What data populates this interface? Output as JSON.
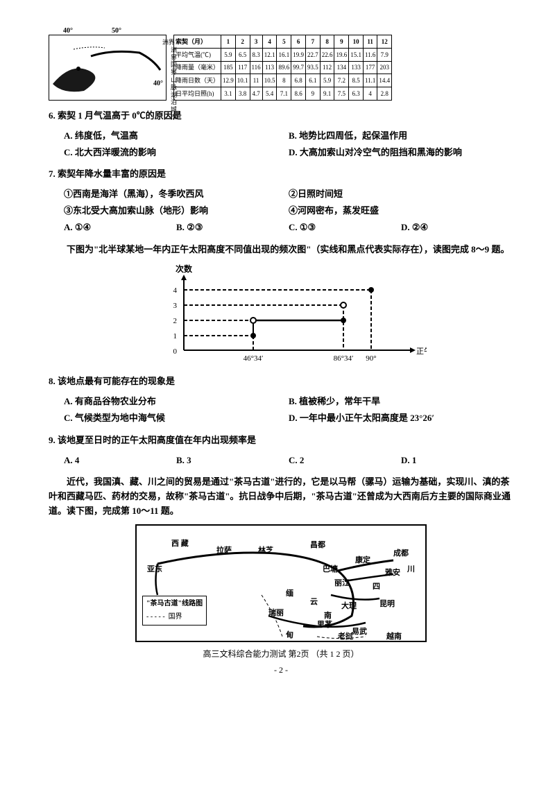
{
  "top_map": {
    "lon_left": "40°",
    "lon_right": "50°",
    "legend": [
      "洲界",
      "国界",
      "山脉",
      "湖泊",
      "城市"
    ],
    "lat": "40°"
  },
  "climate_table": {
    "header": [
      "索契（月）",
      "1",
      "2",
      "3",
      "4",
      "5",
      "6",
      "7",
      "8",
      "9",
      "10",
      "11",
      "12"
    ],
    "rows": [
      [
        "平均气温(℃)",
        "5.9",
        "6.5",
        "8.3",
        "12.1",
        "16.1",
        "19.9",
        "22.7",
        "22.6",
        "19.6",
        "15.1",
        "11.6",
        "7.9"
      ],
      [
        "降雨量（毫米）",
        "185",
        "117",
        "116",
        "113",
        "89.6",
        "99.7",
        "93.5",
        "112",
        "134",
        "133",
        "177",
        "203"
      ],
      [
        "降雨日数（天）",
        "12.9",
        "10.1",
        "11",
        "10.5",
        "8",
        "6.8",
        "6.1",
        "5.9",
        "7.2",
        "8.5",
        "11.1",
        "14.4"
      ],
      [
        "日平均日照(h)",
        "3.1",
        "3.8",
        "4.7",
        "5.4",
        "7.1",
        "8.6",
        "9",
        "9.1",
        "7.5",
        "6.3",
        "4",
        "2.8"
      ]
    ]
  },
  "q6": {
    "stem": "6.  索契 1 月气温高于 0℃的原因是",
    "A": "A.  纬度低，气温高",
    "B": "B.  地势比四周低，起保温作用",
    "C": "C.  北大西洋暖流的影响",
    "D": "D.  大高加索山对冷空气的阻挡和黑海的影响"
  },
  "q7": {
    "stem": "7.  索契年降水量丰富的原因是",
    "s1": "①西南是海洋（黑海），冬季吹西风",
    "s2": "②日照时间短",
    "s3": "③东北受大高加索山脉（地形）影响",
    "s4": "④河网密布，蒸发旺盛",
    "A": "A. ①④",
    "B": "B. ②③",
    "C": "C. ①③",
    "D": "D. ②④"
  },
  "passage89": "下图为\"北半球某地一年内正午太阳高度不同值出现的频次图\"（实线和黑点代表实际存在），读图完成 8～9 题。",
  "chart": {
    "y_label": "次数",
    "y_ticks": [
      "0",
      "1",
      "2",
      "3",
      "4"
    ],
    "x_ticks": [
      "46°34′",
      "86°34′",
      "90°"
    ],
    "x_label": "正午太阳高度"
  },
  "q8": {
    "stem": "8.  该地点最有可能存在的现象是",
    "A": "A.  有商品谷物农业分布",
    "B": "B.  植被稀少，常年干旱",
    "C": "C.  气候类型为地中海气候",
    "D": "D.  一年中最小正午太阳高度是 23°26′"
  },
  "q9": {
    "stem": "9.  该地夏至日时的正午太阳高度值在年内出现频率是",
    "A": "A. 4",
    "B": "B. 3",
    "C": "C. 2",
    "D": "D. 1"
  },
  "passage1011": "近代，我国滇、藏、川之间的贸易是通过\"茶马古道\"进行的，它是以马帮（骡马）运输为基础，实现川、滇的茶叶和西藏马匹、药材的交易，故称\"茶马古道\"。抗日战争中后期，\"茶马古道\"还曾成为大西南后方主要的国际商业通道。读下图，完成第 10～11 题。",
  "bottom_map": {
    "legend_title": "\"茶马古道\"线路图",
    "legend_border": "国界",
    "places": {
      "xizang": "西    藏",
      "lasa": "拉萨",
      "linzhi": "林芝",
      "changdu": "昌都",
      "kangding": "康定",
      "chengdu": "成都",
      "chuan": "川",
      "yadong": "亚东",
      "batang": "巴塘",
      "lijiang": "丽江",
      "yaan": "雅安",
      "si": "四",
      "ruili": "瑞丽",
      "yun": "云",
      "dali": "大理",
      "kunming": "昆明",
      "nan": "南",
      "simao": "思茅",
      "yiwu": "易武",
      "mian": "缅",
      "dian": "甸",
      "laowo": "老挝",
      "yuenan": "越南"
    }
  },
  "footer": "高三文科综合能力测试   第2页 （共 1 2 页）",
  "pagenum": "- 2 -"
}
